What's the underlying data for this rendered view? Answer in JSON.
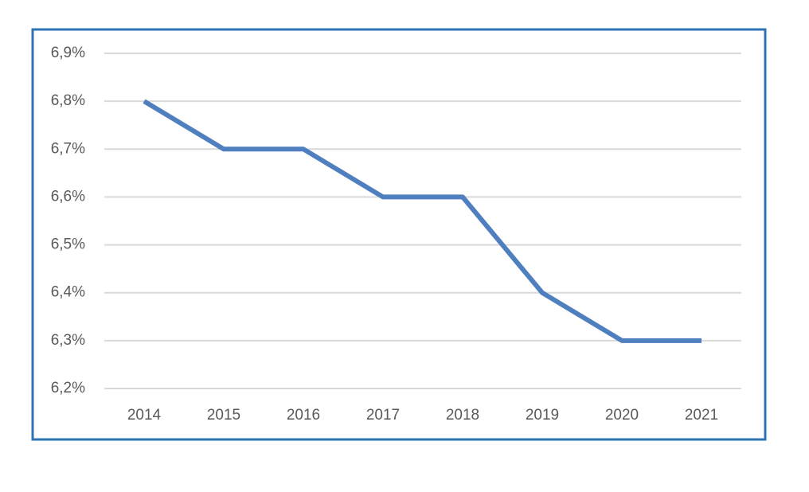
{
  "chart_data": {
    "type": "line",
    "categories": [
      "2014",
      "2015",
      "2016",
      "2017",
      "2018",
      "2019",
      "2020",
      "2021"
    ],
    "series": [
      {
        "color": "#4f7fbf",
        "values": [
          6.8,
          6.7,
          6.7,
          6.6,
          6.6,
          6.4,
          6.3,
          6.3
        ]
      }
    ],
    "ylim": [
      6.2,
      6.9
    ],
    "yticks": [
      {
        "value": 6.2,
        "label": "6,2%"
      },
      {
        "value": 6.3,
        "label": "6,3%"
      },
      {
        "value": 6.4,
        "label": "6,4%"
      },
      {
        "value": 6.5,
        "label": "6,5%"
      },
      {
        "value": 6.6,
        "label": "6,6%"
      },
      {
        "value": 6.7,
        "label": "6,7%"
      },
      {
        "value": 6.8,
        "label": "6,8%"
      },
      {
        "value": 6.9,
        "label": "6,9%"
      }
    ],
    "grid": true
  }
}
